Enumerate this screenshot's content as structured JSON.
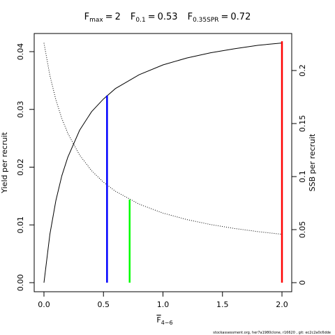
{
  "chart_data": {
    "type": "line",
    "title": [
      {
        "base": "F",
        "sub": "max",
        "relation": "=",
        "value": 2
      },
      {
        "base": "F",
        "sub": "0.1",
        "relation": "=",
        "value": 0.53
      },
      {
        "base": "F",
        "sub": "0.35SPR",
        "relation": "=",
        "value": 0.72
      }
    ],
    "xlabel": {
      "base": "F",
      "sub": "4−6"
    },
    "ylabel": "Yield per recruit",
    "y2label": "SSB per recruit",
    "footer": "stockassessment.org, her7a1980clone, r16620 , git: ec2c2a0c6dde",
    "x": [
      0,
      0.05,
      0.1,
      0.15,
      0.2,
      0.3,
      0.4,
      0.5,
      0.6,
      0.8,
      1.0,
      1.2,
      1.4,
      1.6,
      1.8,
      2.0
    ],
    "series": [
      {
        "name": "Yield per recruit",
        "color": "#000000",
        "dash": "solid",
        "values": [
          0,
          0.0084,
          0.0142,
          0.0185,
          0.0217,
          0.0264,
          0.0296,
          0.0318,
          0.0336,
          0.036,
          0.0377,
          0.0389,
          0.0398,
          0.0405,
          0.0411,
          0.0415
        ]
      },
      {
        "name": "SSB per recruit",
        "color": "#000000",
        "dash": "dotted",
        "axis": "y2",
        "values": [
          0.226,
          0.1952,
          0.1724,
          0.1548,
          0.1409,
          0.1202,
          0.1056,
          0.0947,
          0.0862,
          0.074,
          0.0656,
          0.0595,
          0.0548,
          0.0511,
          0.0481,
          0.0456
        ]
      }
    ],
    "reference_lines": [
      {
        "x": 0.53,
        "value": 0.0324,
        "color": "#0000ff"
      },
      {
        "x": 0.72,
        "value": 0.0783,
        "color": "#00ff00",
        "axis": "y2"
      },
      {
        "x": 2,
        "value": 0.0418,
        "color": "#ff0000"
      }
    ],
    "xlim": [
      -0.082,
      2.082
    ],
    "xticks": [
      {
        "value": 0,
        "label": "0.0"
      },
      0.5,
      {
        "value": 1,
        "label": "1.0"
      },
      1.5,
      {
        "value": 2,
        "label": "2.0"
      }
    ],
    "ylim": [
      -0.00157,
      0.04314
    ],
    "yticks": [
      {
        "value": 0,
        "label": "0.00"
      },
      0.01,
      0.02,
      0.03,
      0.04
    ],
    "y2lim": [
      -0.00855,
      0.2349
    ],
    "y2ticks": [
      0,
      0.05,
      0.1,
      0.15,
      0.2
    ]
  }
}
